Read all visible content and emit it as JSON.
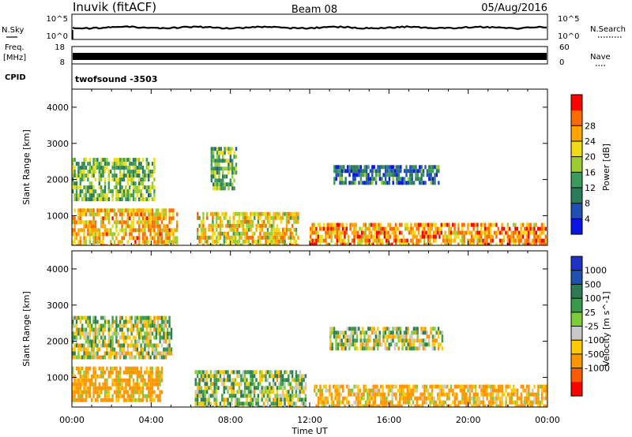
{
  "header": {
    "station": "Inuvik (fitACF)",
    "beam": "Beam 08",
    "date": "05/Aug/2016"
  },
  "top_panels": {
    "nsky_label": "N.Sky",
    "nsearch_label": "N.Search",
    "freq_label": "Freq.",
    "freq_unit": "[MHz]",
    "nave_label": "Nave",
    "cpid_label": "CPID",
    "cpid_value": "twofsound -3503",
    "noise_ticks": [
      "10^5",
      "10^0"
    ],
    "freq_ticks": [
      "18",
      "8"
    ],
    "nave_ticks": [
      "60",
      "0"
    ]
  },
  "colors": {
    "power_scale": [
      "#0a14e6",
      "#1e50b4",
      "#2d7a5a",
      "#3c9a5a",
      "#9acd32",
      "#f0dc14",
      "#ffa500",
      "#ff6a00",
      "#ff0000"
    ],
    "velocity_scale": [
      "#1e32c8",
      "#2050b0",
      "#2e7a52",
      "#3a9a4a",
      "#7ccc3c",
      "#c8c8c8",
      "#ffc800",
      "#ff9600",
      "#ff5a00",
      "#ff0000"
    ]
  },
  "chart_data": [
    {
      "type": "heatmap",
      "title": "",
      "quantity": "Power",
      "ylabel": "Slant Range [km]",
      "xlabel": "Time UT",
      "x_ticks": [
        "00:00",
        "04:00",
        "08:00",
        "12:00",
        "16:00",
        "20:00",
        "00:00"
      ],
      "xlim_hours": [
        0,
        24
      ],
      "ylim_km": [
        180,
        4500
      ],
      "y_ticks": [
        1000,
        2000,
        3000,
        4000
      ],
      "colorbar": {
        "label": "Power [dB]",
        "ticks": [
          4,
          8,
          12,
          16,
          20,
          24,
          28
        ],
        "range": [
          0,
          32
        ]
      },
      "regions": [
        {
          "t0": 0.0,
          "t1": 5.3,
          "r0": 200,
          "r1": 1200,
          "level": 22
        },
        {
          "t0": 0.0,
          "t1": 4.2,
          "r0": 1500,
          "r1": 2600,
          "level": 14
        },
        {
          "t0": 6.3,
          "t1": 11.4,
          "r0": 200,
          "r1": 1100,
          "level": 20
        },
        {
          "t0": 7.0,
          "t1": 8.3,
          "r0": 1700,
          "r1": 2900,
          "level": 14
        },
        {
          "t0": 12.0,
          "t1": 24.0,
          "r0": 200,
          "r1": 800,
          "level": 24
        },
        {
          "t0": 13.2,
          "t1": 18.5,
          "r0": 1900,
          "r1": 2400,
          "level": 8
        }
      ]
    },
    {
      "type": "heatmap",
      "title": "",
      "quantity": "Velocity",
      "ylabel": "Slant Range [km]",
      "xlabel": "Time UT",
      "x_ticks": [
        "00:00",
        "04:00",
        "08:00",
        "12:00",
        "16:00",
        "20:00",
        "00:00"
      ],
      "xlim_hours": [
        0,
        24
      ],
      "ylim_km": [
        180,
        4500
      ],
      "y_ticks": [
        1000,
        2000,
        3000,
        4000
      ],
      "colorbar": {
        "label": "Velocity [m s^-1]",
        "ticks": [
          "1000",
          "500",
          "100",
          "25",
          "-25",
          "-100",
          "-500",
          "-1000"
        ],
        "range": [
          -1250,
          1250
        ]
      },
      "regions": [
        {
          "t0": 0.0,
          "t1": 4.5,
          "r0": 400,
          "r1": 1300,
          "value": -200
        },
        {
          "t0": 0.0,
          "t1": 5.0,
          "r0": 1500,
          "r1": 2700,
          "value": 0
        },
        {
          "t0": 6.2,
          "t1": 11.8,
          "r0": 200,
          "r1": 1200,
          "value": 40
        },
        {
          "t0": 12.2,
          "t1": 24.0,
          "r0": 200,
          "r1": 800,
          "value": -150
        },
        {
          "t0": 13.0,
          "t1": 18.7,
          "r0": 1800,
          "r1": 2400,
          "value": 0
        }
      ]
    }
  ]
}
